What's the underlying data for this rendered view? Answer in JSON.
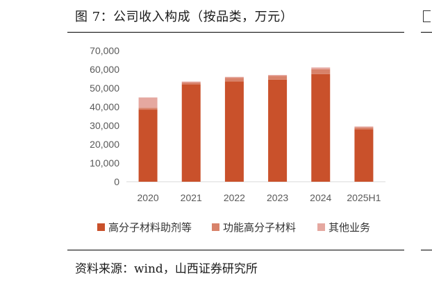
{
  "figure": {
    "title": "图 7：公司收入构成（按品类，万元）",
    "source": "资料来源：wind，山西证券研究所"
  },
  "chart_data": {
    "type": "bar",
    "stacked": true,
    "categories": [
      "2020",
      "2021",
      "2022",
      "2023",
      "2024",
      "2025H1"
    ],
    "series": [
      {
        "name": "高分子材料助剂等",
        "color": "#c9512b",
        "values": [
          38500,
          52000,
          53500,
          54500,
          57500,
          28000
        ]
      },
      {
        "name": "功能高分子材料",
        "color": "#d8826a",
        "values": [
          1000,
          1000,
          2000,
          2000,
          2500,
          1000
        ]
      },
      {
        "name": "其他业务",
        "color": "#e5a8a0",
        "values": [
          5500,
          500,
          500,
          500,
          1000,
          500
        ]
      }
    ],
    "ylim": [
      0,
      70000
    ],
    "yticks": [
      0,
      10000,
      20000,
      30000,
      40000,
      50000,
      60000,
      70000
    ],
    "ytick_labels": [
      "0",
      "10,000",
      "20,000",
      "30,000",
      "40,000",
      "50,000",
      "60,000",
      "70,000"
    ],
    "grid": false,
    "legend_position": "bottom"
  }
}
